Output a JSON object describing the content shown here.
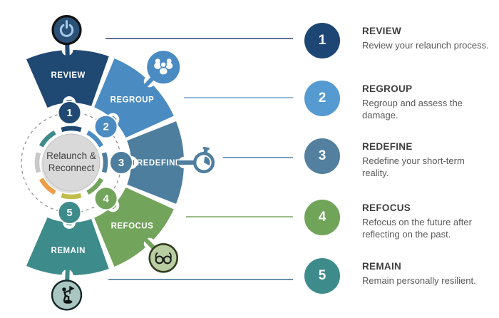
{
  "diagram": {
    "center_label": "Relaunch &\nReconnect",
    "center_bg": "#D9D9D9",
    "center_border": "#C2C2C2",
    "center_text_color": "#404040",
    "dashed_ring_color": "#8A8A8A",
    "ring_segment_colors": [
      "#1F4873",
      "#4A8BC2",
      "#4E7E9D",
      "#72A45B",
      "#C2BC4C",
      "#EF9C45",
      "#C8C8C8",
      "#3E8B8B"
    ],
    "wedges": [
      {
        "number": "1",
        "label": "REVIEW",
        "color": "#1F4873",
        "icon": "power-icon",
        "icon_bg": "#2C5177",
        "icon_border": "#121212",
        "icon_glyph": "#A6C9E8"
      },
      {
        "number": "2",
        "label": "REGROUP",
        "color": "#4A8BC2",
        "icon": "people-icon",
        "icon_bg": "#4A8BC2",
        "icon_border": "none",
        "icon_glyph": "#FFFFFF"
      },
      {
        "number": "3",
        "label": "REDEFINE",
        "color": "#4E7E9D",
        "icon": "stopwatch-icon",
        "icon_bg": "#FFFFFF",
        "icon_border": "#4E7E9D",
        "icon_glyph": "#4E7E9D"
      },
      {
        "number": "4",
        "label": "REFOCUS",
        "color": "#72A45B",
        "icon": "glasses-icon",
        "icon_bg": "#B9CDA3",
        "icon_border": "#333D1F",
        "icon_glyph": "#1B1B1B"
      },
      {
        "number": "5",
        "label": "REMAIN",
        "color": "#3E8B8B",
        "icon": "flag-person-icon",
        "icon_bg": "#A9C6C0",
        "icon_border": "#14262A",
        "icon_glyph": "#0C1414"
      }
    ]
  },
  "legend": {
    "items": [
      {
        "number": "1",
        "title": "REVIEW",
        "desc": "Review your relaunch process.",
        "color": "#1D4674",
        "line_color": "#2A4570"
      },
      {
        "number": "2",
        "title": "REGROUP",
        "desc": "Regroup and assess the\ndamage.",
        "color": "#559AD1",
        "line_color": "#74A3CC"
      },
      {
        "number": "3",
        "title": "REDEFINE",
        "desc": "Redefine your short-term\nreality.",
        "color": "#53809E",
        "line_color": "#54809F"
      },
      {
        "number": "4",
        "title": "REFOCUS",
        "desc": "Refocus on the future after\nreflecting on the past.",
        "color": "#70A459",
        "line_color": "#79A661"
      },
      {
        "number": "5",
        "title": "REMAIN",
        "desc": "Remain personally resilient.",
        "color": "#3E8B8B",
        "line_color": "#6B90AB"
      }
    ]
  }
}
